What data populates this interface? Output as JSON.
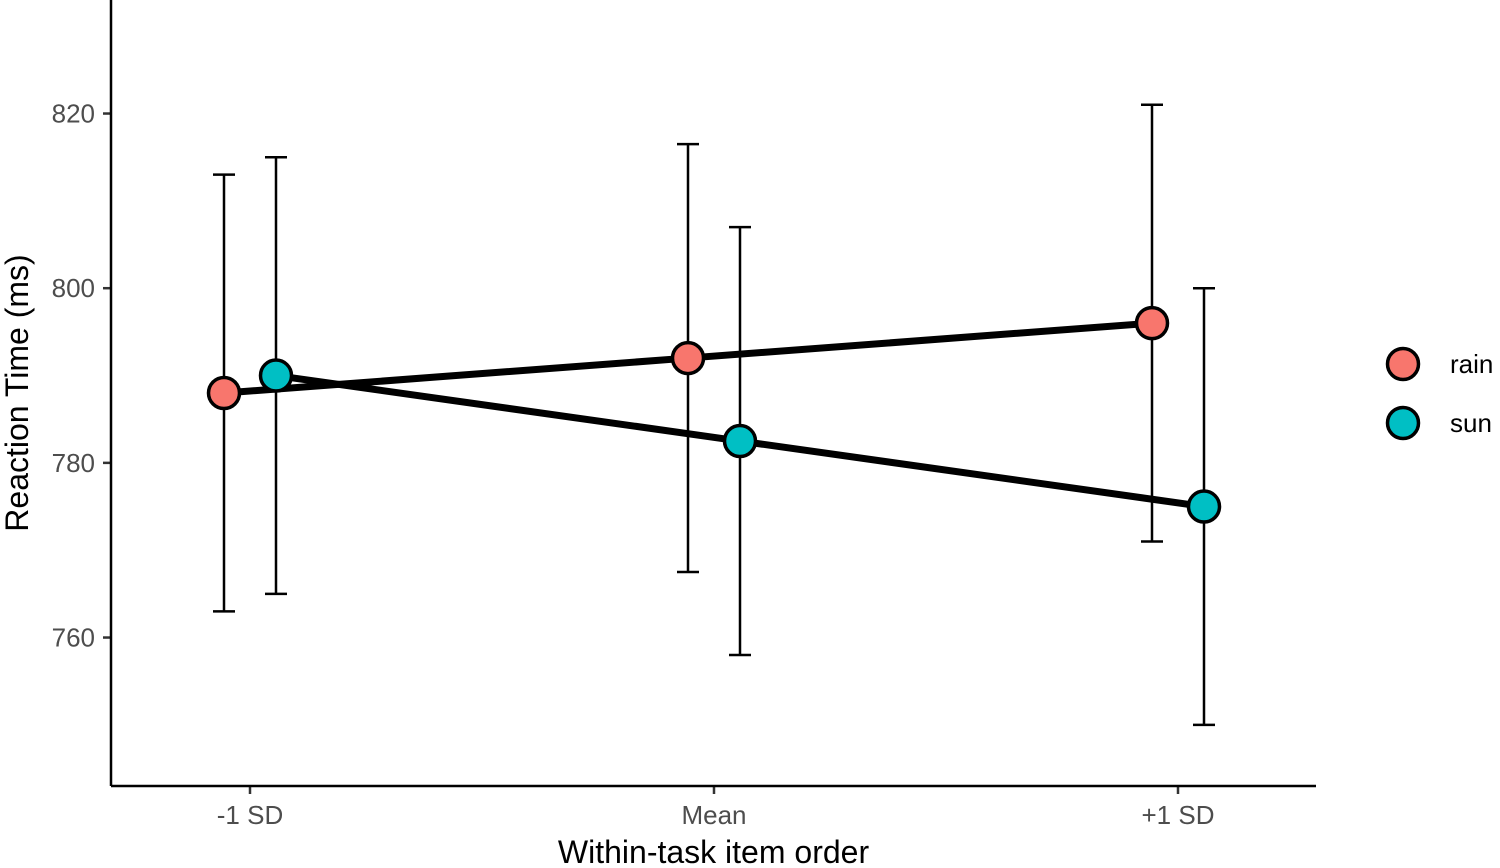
{
  "chart_data": {
    "type": "line",
    "title": "",
    "xlabel": "Within-task item order",
    "ylabel": "Reaction Time (ms)",
    "categories": [
      "-1 SD",
      "Mean",
      "+1 SD"
    ],
    "ylim": [
      743,
      833
    ],
    "yticks": [
      760,
      780,
      800,
      820
    ],
    "grid": false,
    "legend": {
      "position": "right"
    },
    "series": [
      {
        "name": "rain",
        "color": "#F8766D",
        "values": [
          788,
          792,
          796
        ],
        "lower": [
          763,
          767.5,
          771
        ],
        "upper": [
          813,
          816.5,
          821
        ]
      },
      {
        "name": "sun",
        "color": "#00BFC4",
        "values": [
          790,
          782.5,
          775
        ],
        "lower": [
          765,
          758,
          750
        ],
        "upper": [
          815,
          807,
          800
        ]
      }
    ]
  }
}
